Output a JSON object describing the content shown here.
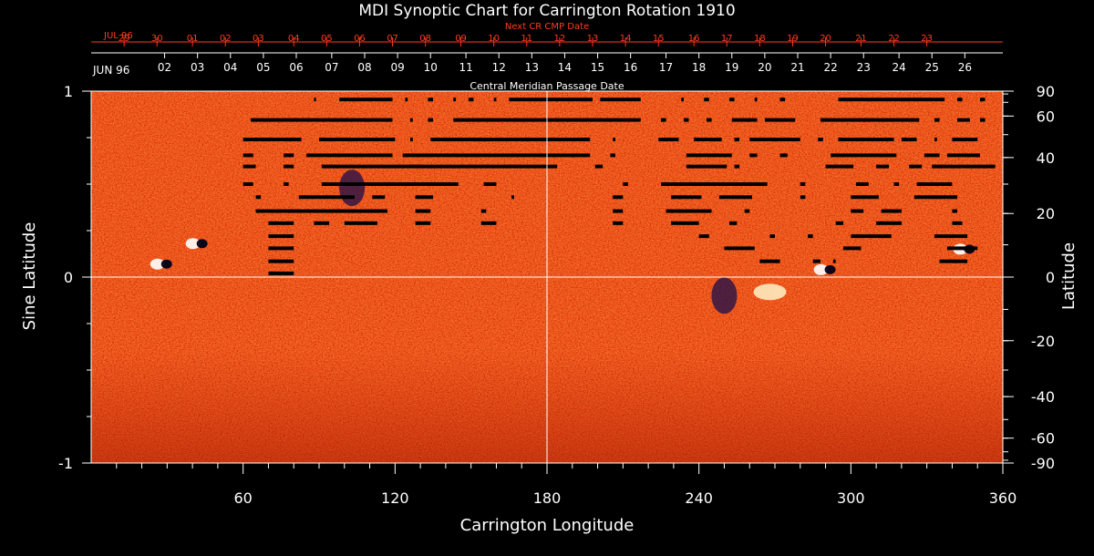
{
  "chart_data": {
    "type": "heatmap",
    "title": "MDI Synoptic Chart for Carrington Rotation 1910",
    "xlabel": "Carrington Longitude",
    "ylabel_left": "Sine Latitude",
    "ylabel_right": "Latitude",
    "xlim": [
      0,
      360
    ],
    "ylim": [
      -1,
      1
    ],
    "x_ticks": [
      60,
      120,
      180,
      240,
      300,
      360
    ],
    "y_ticks_left": [
      -1,
      0,
      1
    ],
    "y_ticks_right": [
      -90,
      -60,
      -40,
      -20,
      0,
      20,
      40,
      60,
      90
    ],
    "grid": {
      "meridian": 180,
      "equator": 0
    },
    "cmp_axis": {
      "label": "Central Meridian Passage Date",
      "month_label": "JUN 96",
      "dates": [
        {
          "day": "26",
          "lon": 345
        },
        {
          "day": "25",
          "lon": 332
        },
        {
          "day": "24",
          "lon": 319
        },
        {
          "day": "23",
          "lon": 305
        },
        {
          "day": "22",
          "lon": 292
        },
        {
          "day": "21",
          "lon": 279
        },
        {
          "day": "20",
          "lon": 266
        },
        {
          "day": "19",
          "lon": 253
        },
        {
          "day": "18",
          "lon": 240
        },
        {
          "day": "17",
          "lon": 227
        },
        {
          "day": "16",
          "lon": 213
        },
        {
          "day": "15",
          "lon": 200
        },
        {
          "day": "14",
          "lon": 187
        },
        {
          "day": "13",
          "lon": 174
        },
        {
          "day": "12",
          "lon": 161
        },
        {
          "day": "11",
          "lon": 148
        },
        {
          "day": "10",
          "lon": 134
        },
        {
          "day": "09",
          "lon": 121
        },
        {
          "day": "08",
          "lon": 108
        },
        {
          "day": "07",
          "lon": 95
        },
        {
          "day": "06",
          "lon": 81
        },
        {
          "day": "05",
          "lon": 68
        },
        {
          "day": "04",
          "lon": 55
        },
        {
          "day": "03",
          "lon": 42
        },
        {
          "day": "02",
          "lon": 29
        }
      ]
    },
    "next_cmp_axis": {
      "label": "Next CR CMP Date",
      "month_label": "JUL 96",
      "dates": [
        {
          "day": "23",
          "lon": 330
        },
        {
          "day": "22",
          "lon": 317
        },
        {
          "day": "21",
          "lon": 304
        },
        {
          "day": "20",
          "lon": 290
        },
        {
          "day": "19",
          "lon": 277
        },
        {
          "day": "18",
          "lon": 264
        },
        {
          "day": "17",
          "lon": 251
        },
        {
          "day": "16",
          "lon": 238
        },
        {
          "day": "15",
          "lon": 224
        },
        {
          "day": "14",
          "lon": 211
        },
        {
          "day": "13",
          "lon": 198
        },
        {
          "day": "12",
          "lon": 185
        },
        {
          "day": "11",
          "lon": 172
        },
        {
          "day": "10",
          "lon": 159
        },
        {
          "day": "09",
          "lon": 146
        },
        {
          "day": "08",
          "lon": 132
        },
        {
          "day": "07",
          "lon": 119
        },
        {
          "day": "06",
          "lon": 106
        },
        {
          "day": "05",
          "lon": 93
        },
        {
          "day": "04",
          "lon": 80
        },
        {
          "day": "03",
          "lon": 66
        },
        {
          "day": "02",
          "lon": 53
        },
        {
          "day": "01",
          "lon": 40
        },
        {
          "day": "30",
          "lon": 26
        },
        {
          "day": "29",
          "lon": 13
        }
      ]
    },
    "data_gaps": [
      {
        "sinlat": 0.955,
        "lon_start": 88,
        "lon_end": 88.8
      },
      {
        "sinlat": 0.955,
        "lon_start": 98,
        "lon_end": 119
      },
      {
        "sinlat": 0.955,
        "lon_start": 124,
        "lon_end": 125
      },
      {
        "sinlat": 0.955,
        "lon_start": 133,
        "lon_end": 135
      },
      {
        "sinlat": 0.955,
        "lon_start": 143,
        "lon_end": 144
      },
      {
        "sinlat": 0.955,
        "lon_start": 149,
        "lon_end": 151
      },
      {
        "sinlat": 0.955,
        "lon_start": 159,
        "lon_end": 160
      },
      {
        "sinlat": 0.955,
        "lon_start": 165,
        "lon_end": 198
      },
      {
        "sinlat": 0.955,
        "lon_start": 201,
        "lon_end": 217
      },
      {
        "sinlat": 0.955,
        "lon_start": 233,
        "lon_end": 234
      },
      {
        "sinlat": 0.955,
        "lon_start": 242,
        "lon_end": 244
      },
      {
        "sinlat": 0.955,
        "lon_start": 252,
        "lon_end": 254
      },
      {
        "sinlat": 0.955,
        "lon_start": 262,
        "lon_end": 263
      },
      {
        "sinlat": 0.955,
        "lon_start": 272,
        "lon_end": 274
      },
      {
        "sinlat": 0.955,
        "lon_start": 295,
        "lon_end": 337
      },
      {
        "sinlat": 0.955,
        "lon_start": 342,
        "lon_end": 344
      },
      {
        "sinlat": 0.955,
        "lon_start": 351,
        "lon_end": 353
      },
      {
        "sinlat": 0.845,
        "lon_start": 63,
        "lon_end": 119
      },
      {
        "sinlat": 0.845,
        "lon_start": 126,
        "lon_end": 127
      },
      {
        "sinlat": 0.845,
        "lon_start": 133,
        "lon_end": 135
      },
      {
        "sinlat": 0.845,
        "lon_start": 143,
        "lon_end": 217
      },
      {
        "sinlat": 0.845,
        "lon_start": 225,
        "lon_end": 227
      },
      {
        "sinlat": 0.845,
        "lon_start": 234,
        "lon_end": 236
      },
      {
        "sinlat": 0.845,
        "lon_start": 243,
        "lon_end": 245
      },
      {
        "sinlat": 0.845,
        "lon_start": 253,
        "lon_end": 263
      },
      {
        "sinlat": 0.845,
        "lon_start": 266,
        "lon_end": 278
      },
      {
        "sinlat": 0.845,
        "lon_start": 288,
        "lon_end": 327
      },
      {
        "sinlat": 0.845,
        "lon_start": 333,
        "lon_end": 335
      },
      {
        "sinlat": 0.845,
        "lon_start": 342,
        "lon_end": 347
      },
      {
        "sinlat": 0.845,
        "lon_start": 351,
        "lon_end": 353
      },
      {
        "sinlat": 0.74,
        "lon_start": 60,
        "lon_end": 83
      },
      {
        "sinlat": 0.74,
        "lon_start": 90,
        "lon_end": 120
      },
      {
        "sinlat": 0.74,
        "lon_start": 126,
        "lon_end": 127
      },
      {
        "sinlat": 0.74,
        "lon_start": 134,
        "lon_end": 197
      },
      {
        "sinlat": 0.74,
        "lon_start": 206,
        "lon_end": 207
      },
      {
        "sinlat": 0.74,
        "lon_start": 224,
        "lon_end": 232
      },
      {
        "sinlat": 0.74,
        "lon_start": 238,
        "lon_end": 249
      },
      {
        "sinlat": 0.74,
        "lon_start": 254,
        "lon_end": 256
      },
      {
        "sinlat": 0.74,
        "lon_start": 260,
        "lon_end": 280
      },
      {
        "sinlat": 0.74,
        "lon_start": 287,
        "lon_end": 289
      },
      {
        "sinlat": 0.74,
        "lon_start": 295,
        "lon_end": 317
      },
      {
        "sinlat": 0.74,
        "lon_start": 320,
        "lon_end": 326
      },
      {
        "sinlat": 0.74,
        "lon_start": 333,
        "lon_end": 334
      },
      {
        "sinlat": 0.74,
        "lon_start": 340,
        "lon_end": 350
      },
      {
        "sinlat": 0.655,
        "lon_start": 60,
        "lon_end": 64
      },
      {
        "sinlat": 0.655,
        "lon_start": 76,
        "lon_end": 80
      },
      {
        "sinlat": 0.655,
        "lon_start": 85,
        "lon_end": 119
      },
      {
        "sinlat": 0.655,
        "lon_start": 123,
        "lon_end": 197
      },
      {
        "sinlat": 0.655,
        "lon_start": 205,
        "lon_end": 207
      },
      {
        "sinlat": 0.655,
        "lon_start": 235,
        "lon_end": 253
      },
      {
        "sinlat": 0.655,
        "lon_start": 260,
        "lon_end": 263
      },
      {
        "sinlat": 0.655,
        "lon_start": 272,
        "lon_end": 275
      },
      {
        "sinlat": 0.655,
        "lon_start": 292,
        "lon_end": 318
      },
      {
        "sinlat": 0.655,
        "lon_start": 329,
        "lon_end": 335
      },
      {
        "sinlat": 0.655,
        "lon_start": 338,
        "lon_end": 351
      },
      {
        "sinlat": 0.595,
        "lon_start": 60,
        "lon_end": 65
      },
      {
        "sinlat": 0.595,
        "lon_start": 76,
        "lon_end": 80
      },
      {
        "sinlat": 0.595,
        "lon_start": 91,
        "lon_end": 184
      },
      {
        "sinlat": 0.595,
        "lon_start": 199,
        "lon_end": 202
      },
      {
        "sinlat": 0.595,
        "lon_start": 235,
        "lon_end": 251
      },
      {
        "sinlat": 0.595,
        "lon_start": 254,
        "lon_end": 256
      },
      {
        "sinlat": 0.595,
        "lon_start": 290,
        "lon_end": 301
      },
      {
        "sinlat": 0.595,
        "lon_start": 310,
        "lon_end": 315
      },
      {
        "sinlat": 0.595,
        "lon_start": 323,
        "lon_end": 328
      },
      {
        "sinlat": 0.595,
        "lon_start": 332,
        "lon_end": 357
      },
      {
        "sinlat": 0.5,
        "lon_start": 60,
        "lon_end": 64
      },
      {
        "sinlat": 0.5,
        "lon_start": 76,
        "lon_end": 78
      },
      {
        "sinlat": 0.5,
        "lon_start": 91,
        "lon_end": 145
      },
      {
        "sinlat": 0.5,
        "lon_start": 155,
        "lon_end": 160
      },
      {
        "sinlat": 0.5,
        "lon_start": 210,
        "lon_end": 212
      },
      {
        "sinlat": 0.5,
        "lon_start": 225,
        "lon_end": 267
      },
      {
        "sinlat": 0.5,
        "lon_start": 280,
        "lon_end": 282
      },
      {
        "sinlat": 0.5,
        "lon_start": 302,
        "lon_end": 307
      },
      {
        "sinlat": 0.5,
        "lon_start": 317,
        "lon_end": 319
      },
      {
        "sinlat": 0.5,
        "lon_start": 326,
        "lon_end": 340
      },
      {
        "sinlat": 0.43,
        "lon_start": 65,
        "lon_end": 67
      },
      {
        "sinlat": 0.43,
        "lon_start": 82,
        "lon_end": 104
      },
      {
        "sinlat": 0.43,
        "lon_start": 111,
        "lon_end": 116
      },
      {
        "sinlat": 0.43,
        "lon_start": 128,
        "lon_end": 135
      },
      {
        "sinlat": 0.43,
        "lon_start": 166,
        "lon_end": 167
      },
      {
        "sinlat": 0.43,
        "lon_start": 206,
        "lon_end": 210
      },
      {
        "sinlat": 0.43,
        "lon_start": 229,
        "lon_end": 241
      },
      {
        "sinlat": 0.43,
        "lon_start": 248,
        "lon_end": 261
      },
      {
        "sinlat": 0.43,
        "lon_start": 280,
        "lon_end": 282
      },
      {
        "sinlat": 0.43,
        "lon_start": 300,
        "lon_end": 311
      },
      {
        "sinlat": 0.43,
        "lon_start": 325,
        "lon_end": 342
      },
      {
        "sinlat": 0.355,
        "lon_start": 65,
        "lon_end": 117
      },
      {
        "sinlat": 0.355,
        "lon_start": 128,
        "lon_end": 134
      },
      {
        "sinlat": 0.355,
        "lon_start": 154,
        "lon_end": 156
      },
      {
        "sinlat": 0.355,
        "lon_start": 206,
        "lon_end": 210
      },
      {
        "sinlat": 0.355,
        "lon_start": 227,
        "lon_end": 245
      },
      {
        "sinlat": 0.355,
        "lon_start": 258,
        "lon_end": 260
      },
      {
        "sinlat": 0.355,
        "lon_start": 300,
        "lon_end": 305
      },
      {
        "sinlat": 0.355,
        "lon_start": 312,
        "lon_end": 320
      },
      {
        "sinlat": 0.355,
        "lon_start": 340,
        "lon_end": 342
      },
      {
        "sinlat": 0.29,
        "lon_start": 70,
        "lon_end": 80
      },
      {
        "sinlat": 0.29,
        "lon_start": 88,
        "lon_end": 94
      },
      {
        "sinlat": 0.29,
        "lon_start": 100,
        "lon_end": 113
      },
      {
        "sinlat": 0.29,
        "lon_start": 128,
        "lon_end": 134
      },
      {
        "sinlat": 0.29,
        "lon_start": 154,
        "lon_end": 160
      },
      {
        "sinlat": 0.29,
        "lon_start": 206,
        "lon_end": 210
      },
      {
        "sinlat": 0.29,
        "lon_start": 229,
        "lon_end": 240
      },
      {
        "sinlat": 0.29,
        "lon_start": 252,
        "lon_end": 255
      },
      {
        "sinlat": 0.29,
        "lon_start": 294,
        "lon_end": 297
      },
      {
        "sinlat": 0.29,
        "lon_start": 310,
        "lon_end": 320
      },
      {
        "sinlat": 0.29,
        "lon_start": 340,
        "lon_end": 344
      },
      {
        "sinlat": 0.22,
        "lon_start": 70,
        "lon_end": 80
      },
      {
        "sinlat": 0.22,
        "lon_start": 240,
        "lon_end": 244
      },
      {
        "sinlat": 0.22,
        "lon_start": 268,
        "lon_end": 270
      },
      {
        "sinlat": 0.22,
        "lon_start": 283,
        "lon_end": 285
      },
      {
        "sinlat": 0.22,
        "lon_start": 300,
        "lon_end": 316
      },
      {
        "sinlat": 0.22,
        "lon_start": 333,
        "lon_end": 346
      },
      {
        "sinlat": 0.155,
        "lon_start": 70,
        "lon_end": 80
      },
      {
        "sinlat": 0.155,
        "lon_start": 250,
        "lon_end": 262
      },
      {
        "sinlat": 0.155,
        "lon_start": 297,
        "lon_end": 304
      },
      {
        "sinlat": 0.155,
        "lon_start": 338,
        "lon_end": 350
      },
      {
        "sinlat": 0.085,
        "lon_start": 70,
        "lon_end": 80
      },
      {
        "sinlat": 0.085,
        "lon_start": 264,
        "lon_end": 272
      },
      {
        "sinlat": 0.085,
        "lon_start": 285,
        "lon_end": 288
      },
      {
        "sinlat": 0.085,
        "lon_start": 293,
        "lon_end": 294
      },
      {
        "sinlat": 0.085,
        "lon_start": 335,
        "lon_end": 346
      },
      {
        "sinlat": 0.02,
        "lon_start": 70,
        "lon_end": 80
      }
    ],
    "active_regions": [
      {
        "lon": 42,
        "sinlat": 0.18,
        "polarity": "mixed"
      },
      {
        "lon": 28,
        "sinlat": 0.07,
        "polarity": "mixed"
      },
      {
        "lon": 103,
        "sinlat": 0.48,
        "polarity": "negative"
      },
      {
        "lon": 250,
        "sinlat": -0.1,
        "polarity": "negative"
      },
      {
        "lon": 268,
        "sinlat": -0.08,
        "polarity": "positive"
      },
      {
        "lon": 290,
        "sinlat": 0.04,
        "polarity": "mixed"
      },
      {
        "lon": 345,
        "sinlat": 0.15,
        "polarity": "mixed"
      }
    ]
  }
}
